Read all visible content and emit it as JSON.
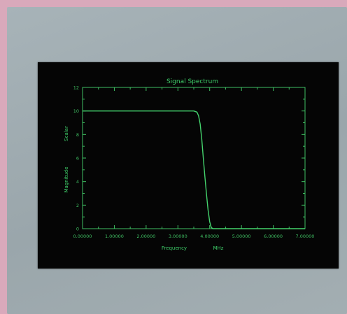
{
  "colors": {
    "trace": "#44d36d",
    "axes": "#3fbf62",
    "screen": "#050505",
    "panel": "#9ea9ae",
    "border": "#d9a9bb"
  },
  "chart_data": {
    "type": "line",
    "title": "Signal Spectrum",
    "xlabel": "Frequency",
    "x_units": "MHz",
    "ylabel": "Magnitude",
    "y_units": "Scalar",
    "xlim": [
      0,
      7
    ],
    "ylim": [
      0,
      12
    ],
    "x_ticks": [
      0,
      1,
      2,
      3,
      4,
      5,
      6,
      7
    ],
    "x_tick_labels": [
      "0.00000",
      "1.00000",
      "2.00000",
      "3.00000",
      "4.00000",
      "5.00000",
      "6.00000",
      "7.00000"
    ],
    "y_ticks": [
      0,
      2,
      4,
      6,
      8,
      10,
      12
    ],
    "y_tick_labels": [
      "0",
      "2",
      "4",
      "6",
      "8",
      "10",
      "12"
    ],
    "grid": false,
    "series": [
      {
        "x": [
          0,
          0.5,
          1.0,
          1.5,
          2.0,
          2.5,
          3.0,
          3.3,
          3.5,
          3.6,
          3.65,
          3.7,
          3.75,
          3.8,
          3.85,
          3.9,
          3.95,
          4.0,
          4.05,
          4.1,
          4.2,
          4.5,
          5.0,
          6.0,
          7.0
        ],
        "y": [
          10,
          10,
          10,
          10,
          10,
          10,
          10,
          10,
          10,
          9.9,
          9.6,
          8.9,
          7.6,
          6.0,
          4.4,
          2.9,
          1.6,
          0.6,
          0.1,
          0,
          0,
          0,
          0,
          0,
          0
        ]
      }
    ]
  }
}
